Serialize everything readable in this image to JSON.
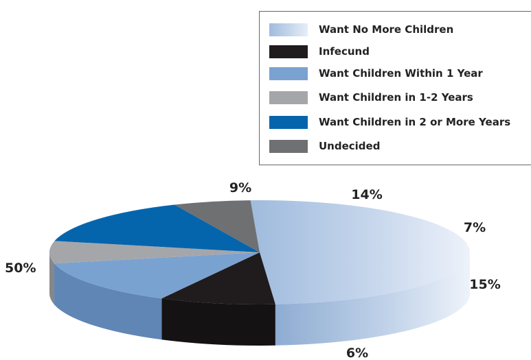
{
  "chart_data": {
    "type": "pie",
    "title": "",
    "legend_position": "top-right",
    "slices": [
      {
        "label": "Want No More Children",
        "value": 50,
        "value_label": "50%",
        "color": "#a9c1e0"
      },
      {
        "label": "Infecund",
        "value": 9,
        "value_label": "9%",
        "color": "#201c1d"
      },
      {
        "label": "Want Children Within 1 Year",
        "value": 14,
        "value_label": "14%",
        "color": "#7aa2d0"
      },
      {
        "label": "Want Children in 1-2 Years",
        "value": 7,
        "value_label": "7%",
        "color": "#a5a6aa"
      },
      {
        "label": "Want Children in 2  or More Years",
        "value": 15,
        "value_label": "15%",
        "color": "#0565ac"
      },
      {
        "label": "Undecided",
        "value": 6,
        "value_label": "6%",
        "color": "#6f7072"
      }
    ]
  }
}
